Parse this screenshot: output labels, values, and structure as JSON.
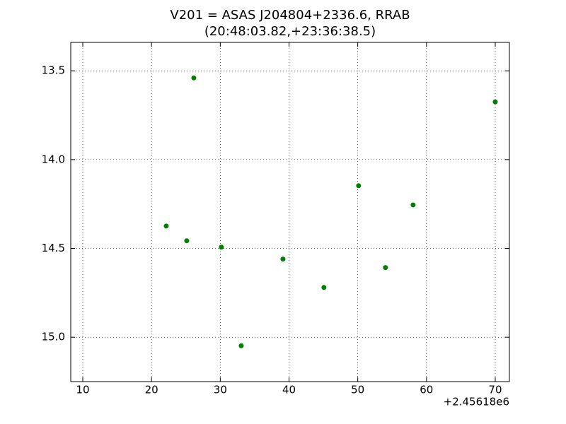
{
  "chart_data": {
    "type": "scatter",
    "title": "V201 = ASAS J204804+2336.6, RRAB",
    "subtitle": "(20:48:03.82,+23:36:38.5)",
    "x_offset_label": "+2.45618e6",
    "x": [
      26.15,
      70.0,
      22.14,
      25.12,
      30.16,
      33.05,
      39.12,
      45.08,
      50.12,
      54.03,
      58.05
    ],
    "values": [
      13.54,
      13.675,
      14.374,
      14.457,
      14.493,
      15.048,
      14.56,
      14.72,
      14.147,
      14.608,
      14.255
    ],
    "color": "#008000",
    "xlim": [
      8.25,
      72.06
    ],
    "ylim": [
      15.25,
      13.34
    ],
    "xticks": [
      10,
      20,
      30,
      40,
      50,
      60,
      70
    ],
    "yticks": [
      13.5,
      {
        "value": 14.0,
        "label": "14.0"
      },
      14.5,
      {
        "value": 15.0,
        "label": "15.0"
      }
    ],
    "grid": true
  }
}
